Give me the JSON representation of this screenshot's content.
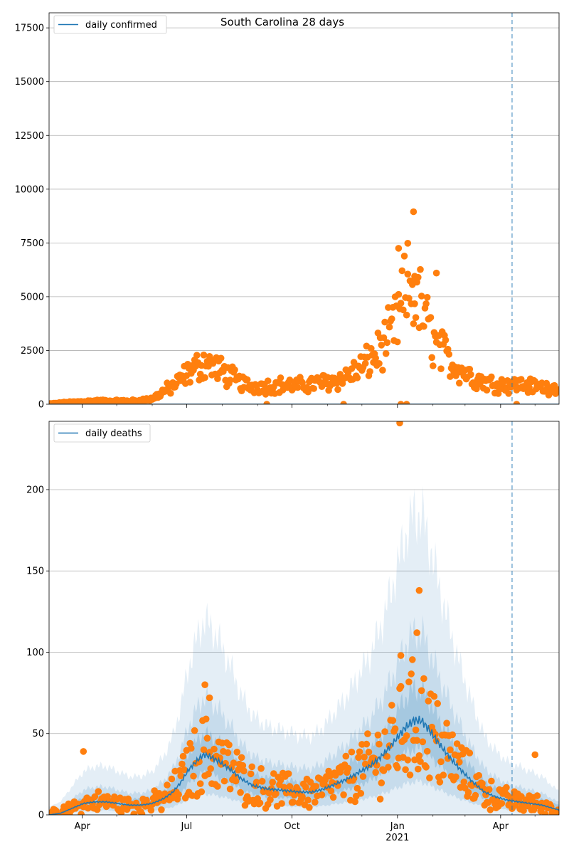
{
  "figure": {
    "title": "South Carolina 28 days",
    "colors": {
      "line": "#1f77b4",
      "points": "#ff7f0e",
      "band": "#1f77b4",
      "grid": "#b0b0b0",
      "vline": "#1f77b4"
    }
  },
  "chart_data": [
    {
      "type": "scatter",
      "legend": [
        "daily confirmed"
      ],
      "legend_position": "upper-left",
      "grid": "y-only",
      "x_range": [
        "2020-03-03",
        "2021-05-22"
      ],
      "ylim": [
        0,
        18200
      ],
      "y_ticks": [
        0,
        2500,
        5000,
        7500,
        10000,
        12500,
        15000,
        17500
      ],
      "y_tick_labels": [
        "0",
        "2500",
        "5000",
        "7500",
        "10000",
        "12500",
        "15000",
        "17500"
      ],
      "x_ticks": [
        "2020-04-01",
        "2020-07-01",
        "2020-10-01",
        "2021-01-01",
        "2021-04-01"
      ],
      "x_tick_labels": [],
      "forecast_start_marker": "2021-04-11",
      "series": [
        {
          "name": "daily confirmed",
          "style": "line",
          "values": [
            [
              0,
              0
            ],
            [
              445,
              0
            ]
          ]
        }
      ],
      "observed_anchors": [
        [
          0,
          20
        ],
        [
          20,
          100
        ],
        [
          40,
          150
        ],
        [
          60,
          150
        ],
        [
          75,
          150
        ],
        [
          90,
          250
        ],
        [
          100,
          600
        ],
        [
          110,
          900
        ],
        [
          120,
          1400
        ],
        [
          130,
          1750
        ],
        [
          137,
          1950
        ],
        [
          145,
          1700
        ],
        [
          155,
          1400
        ],
        [
          165,
          1050
        ],
        [
          175,
          850
        ],
        [
          190,
          850
        ],
        [
          205,
          900
        ],
        [
          215,
          850
        ],
        [
          230,
          950
        ],
        [
          245,
          1050
        ],
        [
          255,
          1200
        ],
        [
          265,
          1450
        ],
        [
          275,
          1800
        ],
        [
          285,
          2300
        ],
        [
          292,
          2700
        ],
        [
          298,
          3200
        ],
        [
          305,
          4000
        ],
        [
          310,
          5000
        ],
        [
          315,
          5500
        ],
        [
          320,
          5000
        ],
        [
          325,
          4400
        ],
        [
          330,
          3700
        ],
        [
          335,
          3000
        ],
        [
          340,
          2600
        ],
        [
          345,
          2300
        ],
        [
          350,
          2000
        ],
        [
          360,
          1600
        ],
        [
          370,
          1250
        ],
        [
          380,
          1050
        ],
        [
          390,
          950
        ],
        [
          400,
          900
        ],
        [
          410,
          900
        ],
        [
          420,
          850
        ],
        [
          430,
          800
        ],
        [
          445,
          750
        ]
      ],
      "outliers": [
        [
          318,
          8950
        ],
        [
          305,
          7250
        ],
        [
          338,
          6100
        ],
        [
          313,
          6050
        ],
        [
          319,
          5950
        ],
        [
          320,
          5800
        ],
        [
          0,
          0
        ],
        [
          190,
          0
        ],
        [
          257,
          0
        ],
        [
          307,
          0
        ],
        [
          312,
          0
        ],
        [
          408,
          0
        ]
      ]
    },
    {
      "type": "line",
      "legend": [
        "daily deaths"
      ],
      "legend_position": "upper-left",
      "grid": "y-only",
      "x_range": [
        "2020-03-03",
        "2021-05-22"
      ],
      "ylim": [
        0,
        242
      ],
      "y_ticks": [
        0,
        50,
        100,
        150,
        200
      ],
      "y_tick_labels": [
        "0",
        "50",
        "100",
        "150",
        "200"
      ],
      "x_ticks": [
        "2020-04-01",
        "2020-07-01",
        "2020-10-01",
        "2021-01-01",
        "2021-04-01"
      ],
      "x_tick_labels": [
        "Apr",
        "Jul",
        "Oct",
        "Jan\n2021",
        "Apr"
      ],
      "forecast_start_marker": "2021-04-11",
      "series": [
        {
          "name": "daily deaths",
          "style": "line",
          "anchors": [
            [
              0,
              0
            ],
            [
              10,
              1
            ],
            [
              20,
              4
            ],
            [
              30,
              7
            ],
            [
              40,
              8
            ],
            [
              50,
              8
            ],
            [
              60,
              7
            ],
            [
              70,
              6
            ],
            [
              80,
              6
            ],
            [
              90,
              7
            ],
            [
              100,
              10
            ],
            [
              108,
              14
            ],
            [
              115,
              20
            ],
            [
              122,
              28
            ],
            [
              130,
              34
            ],
            [
              135,
              37
            ],
            [
              140,
              36
            ],
            [
              148,
              33
            ],
            [
              158,
              28
            ],
            [
              168,
              22
            ],
            [
              178,
              18
            ],
            [
              190,
              16
            ],
            [
              205,
              15
            ],
            [
              220,
              14
            ],
            [
              230,
              14
            ],
            [
              240,
              16
            ],
            [
              250,
              19
            ],
            [
              260,
              22
            ],
            [
              270,
              26
            ],
            [
              280,
              30
            ],
            [
              290,
              36
            ],
            [
              300,
              44
            ],
            [
              310,
              53
            ],
            [
              318,
              58
            ],
            [
              325,
              58
            ],
            [
              332,
              52
            ],
            [
              340,
              44
            ],
            [
              350,
              35
            ],
            [
              360,
              27
            ],
            [
              370,
              20
            ],
            [
              380,
              14
            ],
            [
              390,
              11
            ],
            [
              400,
              9
            ],
            [
              410,
              8
            ],
            [
              420,
              7
            ],
            [
              430,
              6
            ],
            [
              440,
              4
            ],
            [
              445,
              3
            ]
          ]
        }
      ],
      "bands": [
        {
          "quantile": "outer",
          "scale_low": 0.0,
          "scale_high": 3.1,
          "opacity": 0.12
        },
        {
          "quantile": "middle",
          "scale_low": 0.35,
          "scale_high": 1.9,
          "opacity": 0.15
        },
        {
          "quantile": "inner",
          "scale_low": 0.7,
          "scale_high": 1.3,
          "opacity": 0.2
        }
      ],
      "outliers": [
        [
          306,
          241
        ],
        [
          323,
          138
        ],
        [
          321,
          112
        ],
        [
          30,
          39
        ],
        [
          307,
          98
        ],
        [
          136,
          80
        ],
        [
          140,
          72
        ],
        [
          424,
          37
        ]
      ]
    }
  ]
}
